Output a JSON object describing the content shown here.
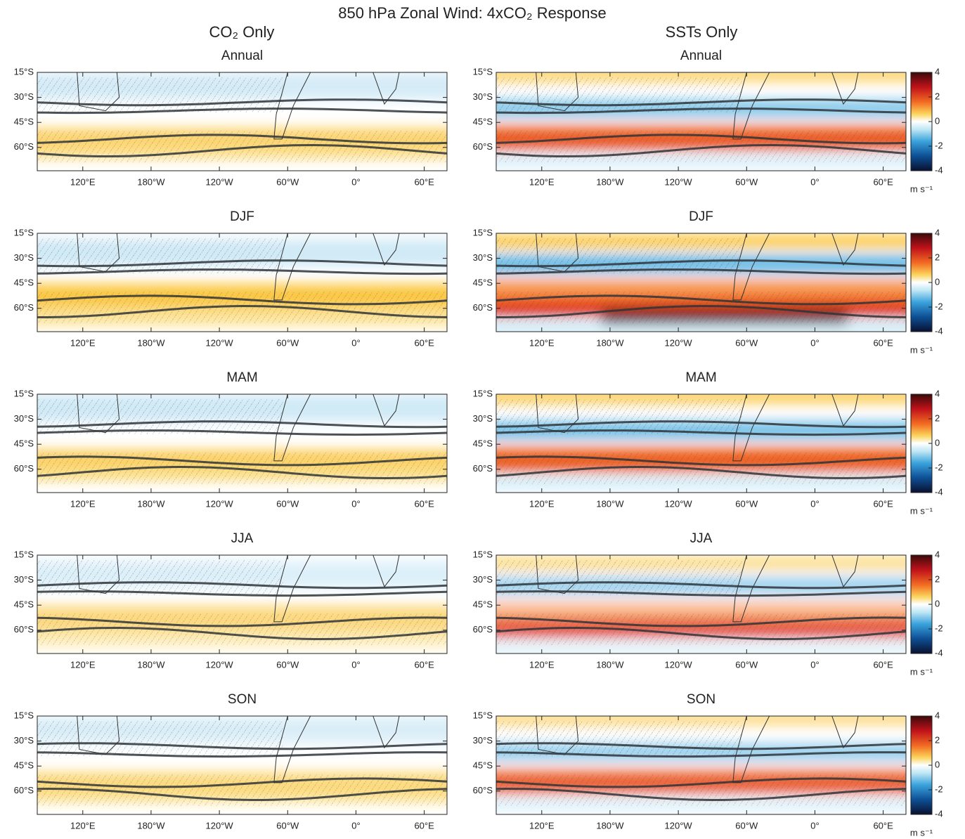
{
  "chart_data": {
    "type": "map",
    "title": "850 hPa Zonal Wind: 4xCO₂ Response",
    "columns": [
      "CO₂ Only",
      "SSTs Only"
    ],
    "panels": [
      "Annual",
      "DJF",
      "MAM",
      "JJA",
      "SON"
    ],
    "xlim": [
      80,
      440
    ],
    "xticks": [
      {
        "value": 120,
        "label": "120°E"
      },
      {
        "value": 180,
        "label": "180°W"
      },
      {
        "value": 240,
        "label": "120°W"
      },
      {
        "value": 300,
        "label": "60°W"
      },
      {
        "value": 360,
        "label": "0°"
      },
      {
        "value": 420,
        "label": "60°E"
      }
    ],
    "ylim": [
      -74,
      -15
    ],
    "yticks": [
      {
        "value": -15,
        "label": "15°S"
      },
      {
        "value": -30,
        "label": "30°S"
      },
      {
        "value": -45,
        "label": "45°S"
      },
      {
        "value": -60,
        "label": "60°S"
      }
    ],
    "colorbar": {
      "lim": [
        -4,
        4
      ],
      "ticks": [
        4,
        2,
        0,
        -2,
        -4
      ],
      "label": "m s⁻¹"
    }
  }
}
